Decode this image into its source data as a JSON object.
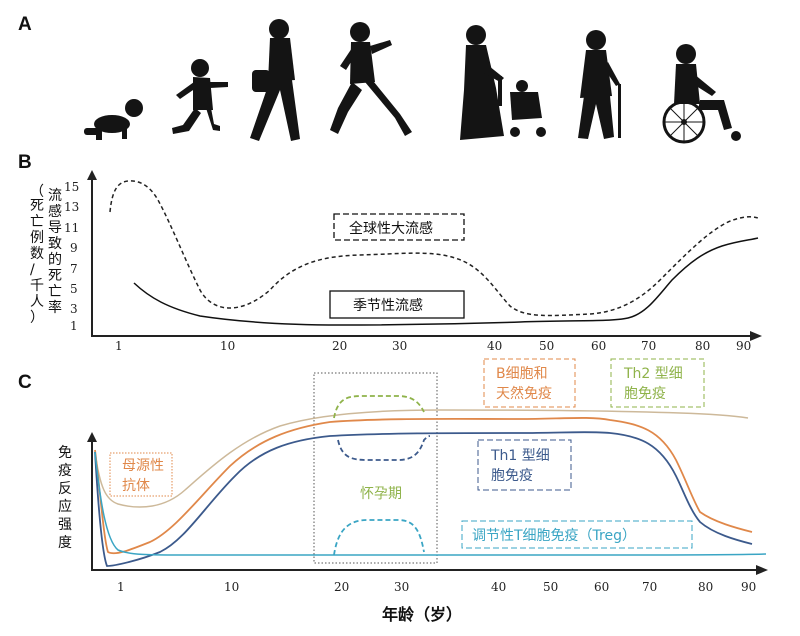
{
  "panels": {
    "a": "A",
    "b": "B",
    "c": "C"
  },
  "x_ticks": [
    "1",
    "10",
    "20",
    "30",
    "40",
    "50",
    "60",
    "70",
    "80",
    "90"
  ],
  "panel_b": {
    "ylabel": "流感导致的死亡率（死亡例数/千人）",
    "y_ticks": [
      "15",
      "13",
      "11",
      "9",
      "7",
      "5",
      "3",
      "1"
    ],
    "pandemic_label": "全球性大流感",
    "seasonal_label": "季节性流感"
  },
  "panel_c": {
    "ylabel": "免疫反应强度",
    "maternal_antibody": "母源性抗体",
    "bcell_innate": "B细胞和天然免疫",
    "th2": "Th2 型细胞免疫",
    "th1": "Th1 型细胞免疫",
    "pregnancy": "怀孕期",
    "treg": "调节性T细胞免疫（Treg）",
    "xlabel": "年龄（岁）"
  },
  "colors": {
    "orange": "#e0884a",
    "green": "#8fb34a",
    "blue": "#3c5a8c",
    "cyan": "#3aa5c4",
    "tan": "#cdb99a"
  },
  "icons": [
    "crawling-baby-icon",
    "running-child-icon",
    "walking-woman-icon",
    "jogging-woman-icon",
    "pregnant-woman-stroller-icon",
    "elderly-woman-cane-icon",
    "wheelchair-man-icon"
  ]
}
